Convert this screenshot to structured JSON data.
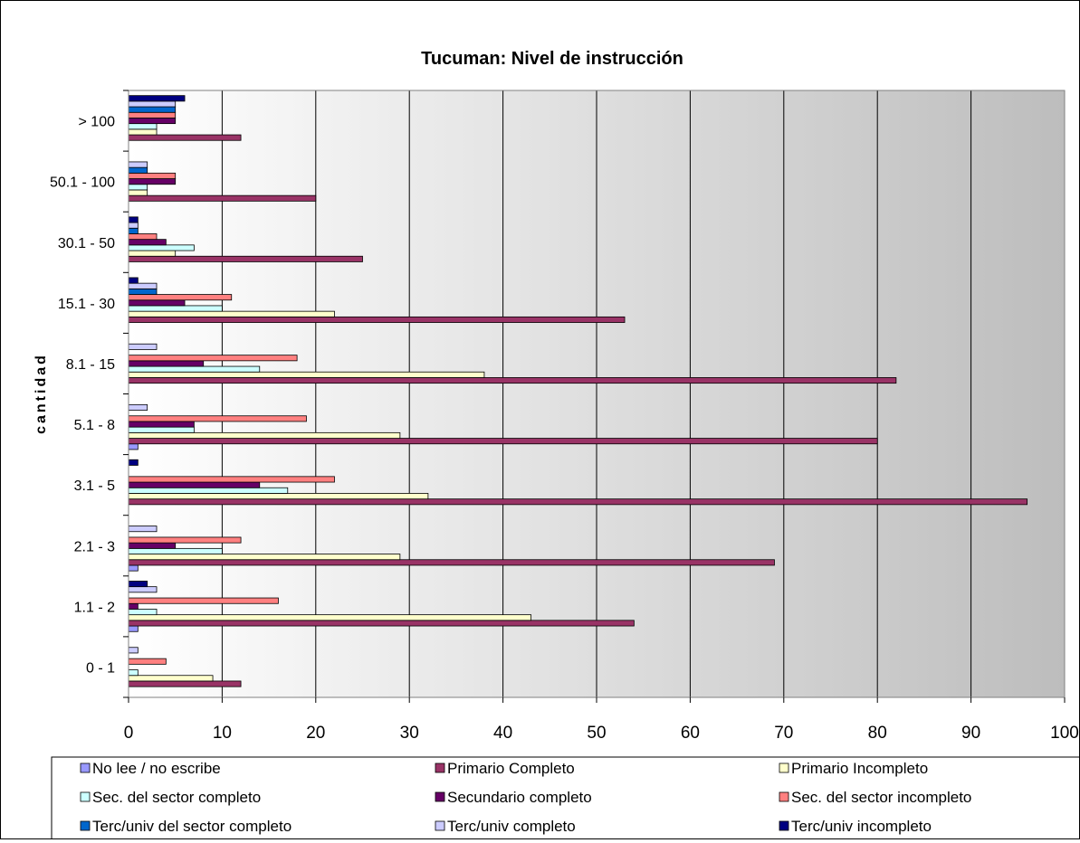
{
  "chart_data": {
    "type": "bar",
    "orientation": "horizontal",
    "title": "Tucuman: Nivel de instrucción",
    "xlabel": "",
    "ylabel": "cantidad",
    "xlim": [
      0,
      100
    ],
    "x_ticks": [
      "0",
      "10",
      "20",
      "30",
      "40",
      "50",
      "60",
      "70",
      "80",
      "90",
      "100"
    ],
    "grid": true,
    "legend_position": "bottom",
    "categories": [
      "0 - 1",
      "1.1 - 2",
      "2.1 - 3",
      "3.1 - 5",
      "5.1 - 8",
      "8.1 - 15",
      "15.1 - 30",
      "30.1 - 50",
      "50.1 - 100",
      "> 100"
    ],
    "series": [
      {
        "name": "No lee / no escribe",
        "color": "#9999FF",
        "values": [
          0,
          1,
          1,
          0,
          1,
          0,
          0,
          0,
          0,
          0
        ]
      },
      {
        "name": "Primario Completo",
        "color": "#993366",
        "values": [
          12,
          54,
          69,
          96,
          80,
          82,
          53,
          25,
          20,
          12
        ]
      },
      {
        "name": "Primario Incompleto",
        "color": "#FFFFCC",
        "values": [
          9,
          43,
          29,
          32,
          29,
          38,
          22,
          5,
          2,
          3
        ]
      },
      {
        "name": "Sec. del sector completo",
        "color": "#CCFFFF",
        "values": [
          1,
          3,
          10,
          17,
          7,
          14,
          10,
          7,
          2,
          3
        ]
      },
      {
        "name": "Secundario completo",
        "color": "#660066",
        "values": [
          0,
          1,
          5,
          14,
          7,
          8,
          6,
          4,
          5,
          5
        ]
      },
      {
        "name": "Sec. del sector incompleto",
        "color": "#FF8080",
        "values": [
          4,
          16,
          12,
          22,
          19,
          18,
          11,
          3,
          5,
          5
        ]
      },
      {
        "name": "Terc/univ del sector completo",
        "color": "#0066CC",
        "values": [
          0,
          0,
          0,
          0,
          0,
          0,
          3,
          1,
          2,
          5
        ]
      },
      {
        "name": "Terc/univ completo",
        "color": "#CCCCFF",
        "values": [
          1,
          3,
          3,
          0,
          2,
          3,
          3,
          1,
          2,
          5
        ]
      },
      {
        "name": "Terc/univ incompleto",
        "color": "#000080",
        "values": [
          0,
          2,
          0,
          1,
          0,
          0,
          1,
          1,
          0,
          6
        ]
      }
    ]
  }
}
